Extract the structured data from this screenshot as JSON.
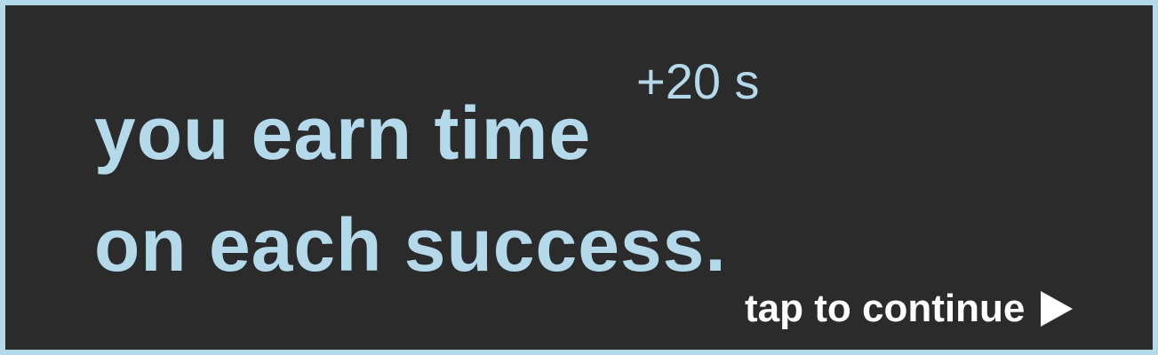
{
  "message": {
    "line1": "you earn time",
    "line2": "on each success.",
    "bonus": "+20 s"
  },
  "continue_prompt": {
    "label": "tap to continue",
    "icon": "play-arrow-icon"
  },
  "colors": {
    "frame": "#b3d9ea",
    "panel": "#2b2b2b",
    "accent_text": "#b3d9ea",
    "prompt_text": "#ffffff"
  }
}
